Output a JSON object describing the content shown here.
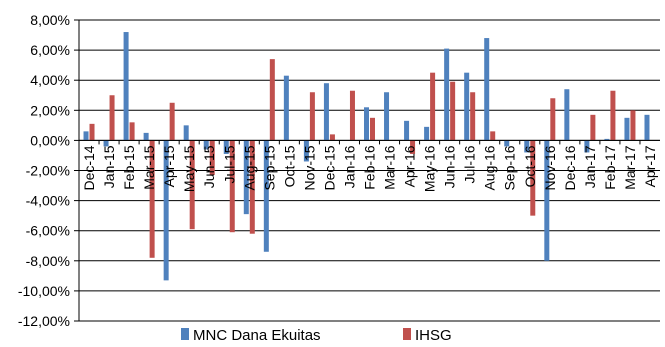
{
  "chart_data": {
    "type": "bar",
    "title": "",
    "xlabel": "",
    "ylabel": "",
    "ylim": [
      -12,
      8
    ],
    "y_ticks": [
      8,
      6,
      4,
      2,
      0,
      -2,
      -4,
      -6,
      -8,
      -10,
      -12
    ],
    "y_tick_labels": [
      "8,00%",
      "6,00%",
      "4,00%",
      "2,00%",
      "0,00%",
      "-2,00%",
      "-4,00%",
      "-6,00%",
      "-8,00%",
      "-10,00%",
      "-12,00%"
    ],
    "categories": [
      "Dec-14",
      "Jan-15",
      "Feb-15",
      "Mar-15",
      "Apr-15",
      "May-15",
      "Jun-15",
      "Jul-15",
      "Aug-15",
      "Sep-15",
      "Oct-15",
      "Nov-15",
      "Dec-15",
      "Jan-16",
      "Feb-16",
      "Mar-16",
      "Apr-16",
      "May-16",
      "Jun-16",
      "Jul-16",
      "Aug-16",
      "Sep-16",
      "Oct-16",
      "Nov-16",
      "Dec-16",
      "Jan-17",
      "Feb-17",
      "Mar-17",
      "Apr-17"
    ],
    "series": [
      {
        "name": "MNC Dana Ekuitas",
        "color": "#4f81bd",
        "values": [
          0.6,
          -0.4,
          7.2,
          0.5,
          -9.3,
          1.0,
          -0.6,
          -0.9,
          -4.9,
          -7.4,
          4.3,
          -1.4,
          3.8,
          0.0,
          2.2,
          3.2,
          1.3,
          0.9,
          6.1,
          4.5,
          6.8,
          -0.4,
          -0.8,
          -8.0,
          3.4,
          -0.8,
          0.1,
          1.5,
          1.7
        ]
      },
      {
        "name": "IHSG",
        "color": "#c0504d",
        "values": [
          1.1,
          3.0,
          1.2,
          -7.8,
          2.5,
          -5.9,
          -2.3,
          -6.1,
          -6.2,
          5.4,
          0.0,
          3.2,
          0.4,
          3.3,
          1.5,
          0.0,
          -0.9,
          4.5,
          3.9,
          3.2,
          0.6,
          0.0,
          -5.0,
          2.8,
          0.0,
          1.7,
          3.3,
          2.0,
          0.0
        ]
      }
    ],
    "grid": true,
    "legend": "bottom"
  }
}
